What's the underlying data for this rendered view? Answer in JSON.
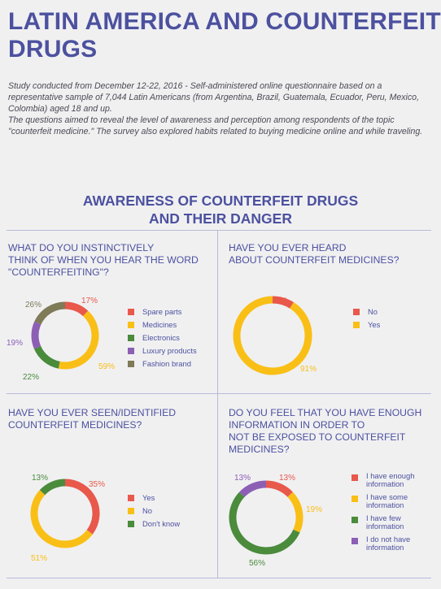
{
  "title_lines": [
    "LATIN AMERICA AND COUNTERFEIT",
    "DRUGS"
  ],
  "intro": [
    "Study conducted from December 12-22, 2016 - Self-administered online questionnaire based on a representative sample of 7,044 Latin Americans (from Argentina, Brazil, Guatemala, Ecuador, Peru, Mexico, Colombia) aged 18 and up.",
    "The questions aimed to reveal the level of awareness and perception among respondents of the topic \"counterfeit medicine.\" The survey also explored habits related to buying medicine online and while traveling."
  ],
  "section_title_lines": [
    "AWARENESS OF COUNTERFEIT DRUGS",
    "AND THEIR DANGER"
  ],
  "colors": {
    "red": "#e8584b",
    "yellow": "#f9bf16",
    "green": "#4a8b3c",
    "purple": "#8c5fb5",
    "olive": "#7f7a57",
    "text_blue": "#4c519f"
  },
  "chart_data": [
    {
      "type": "pie",
      "question_lines": [
        "WHAT DO YOU INSTINCTIVELY",
        "THINK OF WHEN YOU HEAR THE WORD",
        "\"COUNTERFEITING\"?"
      ],
      "categories": [
        "Spare parts",
        "Medicines",
        "Electronics",
        "Luxury products",
        "Fashion brand"
      ],
      "values": [
        17,
        59,
        22,
        19,
        26
      ],
      "labels": [
        "17%",
        "59%",
        "22%",
        "19%",
        "26%"
      ],
      "colors": [
        "#e8584b",
        "#f9bf16",
        "#4a8b3c",
        "#8c5fb5",
        "#7f7a57"
      ],
      "legend_position": "right"
    },
    {
      "type": "pie",
      "question_lines": [
        "HAVE YOU EVER HEARD",
        "ABOUT COUNTERFEIT MEDICINES?"
      ],
      "categories": [
        "No",
        "Yes"
      ],
      "values": [
        9,
        91
      ],
      "labels": [
        "9%",
        "91%"
      ],
      "colors": [
        "#e8584b",
        "#f9bf16"
      ],
      "legend_position": "right"
    },
    {
      "type": "pie",
      "question_lines": [
        "HAVE YOU EVER SEEN/IDENTIFIED",
        "COUNTERFEIT MEDICINES?"
      ],
      "categories": [
        "Yes",
        "No",
        "Don't know"
      ],
      "values": [
        35,
        51,
        13
      ],
      "labels": [
        "35%",
        "51%",
        "13%"
      ],
      "colors": [
        "#e8584b",
        "#f9bf16",
        "#4a8b3c"
      ],
      "legend_position": "right"
    },
    {
      "type": "pie",
      "question_lines": [
        "DO YOU FEEL THAT YOU HAVE ENOUGH",
        "INFORMATION IN ORDER TO",
        "NOT BE EXPOSED TO COUNTERFEIT",
        "MEDICINES?"
      ],
      "categories": [
        "I have enough information",
        "I have some information",
        "I have few information",
        "I do not have information"
      ],
      "values": [
        13,
        19,
        56,
        13
      ],
      "labels": [
        "13%",
        "19%",
        "56%",
        "13%"
      ],
      "colors": [
        "#e8584b",
        "#f9bf16",
        "#4a8b3c",
        "#8c5fb5"
      ],
      "legend_position": "right"
    }
  ]
}
